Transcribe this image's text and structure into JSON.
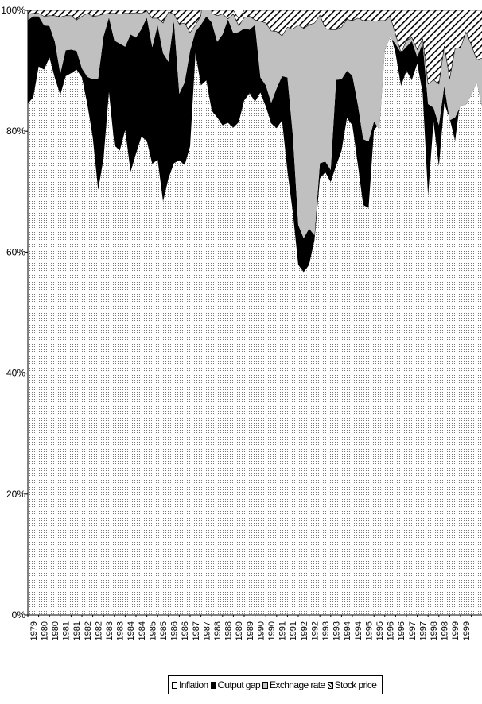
{
  "chart_data": {
    "type": "area",
    "stacked": true,
    "percent_stacked": true,
    "y_tick_labels": [
      "0%",
      "20%",
      "40%",
      "60%",
      "80%",
      "100%"
    ],
    "ylim": [
      0,
      100
    ],
    "x_tick_labels": [
      "1979",
      "1979",
      "1980",
      "1980",
      "1981",
      "1981",
      "1982",
      "1982",
      "1983",
      "1983",
      "1984",
      "1984",
      "1985",
      "1985",
      "1986",
      "1986",
      "1987",
      "1987",
      "1988",
      "1988",
      "1989",
      "1989",
      "1990",
      "1990",
      "1991",
      "1991",
      "1992",
      "1992",
      "1993",
      "1993",
      "1994",
      "1994",
      "1995",
      "1995",
      "1996",
      "1996",
      "1997",
      "1997",
      "1998",
      "1998",
      "1999",
      "1999"
    ],
    "x_tick_labels_rotation": -90,
    "n_points": 88,
    "legend_position": "bottom",
    "series": [
      {
        "name": "Inflation",
        "pattern": "dotted",
        "values": [
          84.6,
          85.6,
          90.7,
          90.2,
          92.2,
          88.8,
          86,
          89.1,
          89.6,
          90.2,
          88.9,
          84.5,
          79,
          70.3,
          75.5,
          86.5,
          77.7,
          76.8,
          80.2,
          73.3,
          76.3,
          79.1,
          78.4,
          74.6,
          75.3,
          68.4,
          72.2,
          74.7,
          75.2,
          74.4,
          77.5,
          92.9,
          87.6,
          88.4,
          83.4,
          82.3,
          81,
          81.4,
          80.6,
          81.5,
          85.1,
          86.3,
          84.9,
          86.4,
          84.1,
          81.3,
          80.5,
          81.8,
          73.4,
          66.5,
          57.9,
          56.7,
          57.9,
          62,
          72.2,
          73.2,
          71.6,
          74.3,
          76.8,
          82.2,
          81,
          74.6,
          67.8,
          67.3,
          80.2,
          81.3,
          93.9,
          96.3,
          92.8,
          87.5,
          90,
          88.5,
          91.2,
          86.3,
          69.3,
          81.6,
          74.2,
          84.6,
          82.1,
          78.4,
          85.4,
          85.1,
          90.3,
          91.2,
          84.7,
          80,
          87,
          83.4
        ]
      },
      {
        "name": "Output gap",
        "color": "#000000",
        "values": [
          13.8,
          13.4,
          8.3,
          7.3,
          5.2,
          6,
          3.5,
          4.3,
          3.9,
          3.1,
          1.5,
          4.5,
          9.6,
          18.4,
          20.2,
          12.3,
          17.3,
          17.7,
          13.8,
          22.7,
          19.2,
          17.8,
          20.4,
          19.3,
          22.2,
          24.5,
          19.3,
          23.6,
          11,
          13.7,
          15.8,
          3.6,
          10,
          10.6,
          14.6,
          12.5,
          15,
          17.1,
          15.6,
          14.9,
          11.9,
          10.5,
          12.7,
          2.5,
          3.5,
          3.4,
          6.6,
          7.3,
          15.5,
          12.8,
          6.6,
          5.6,
          6,
          0.8,
          2.5,
          1.8,
          2,
          14.2,
          11.8,
          7.8,
          8.2,
          9.9,
          10.9,
          11,
          1.4,
          -1,
          -0.5,
          -0.7,
          1.6,
          5.5,
          4,
          6.4,
          1.1,
          8.3,
          15.2,
          2.3,
          6.8,
          2.9,
          -0.3,
          3.9,
          -1.2,
          -0.7,
          -4.3,
          -3.1,
          -0.8,
          -1.7,
          -1.8,
          -1.8
        ]
      },
      {
        "name": "Exchnage rate",
        "color": "#c0c0c0",
        "values": [
          1,
          0.5,
          0.5,
          1.5,
          1.7,
          4.3,
          9.4,
          5.7,
          5.6,
          5.1,
          8.6,
          10.5,
          10.4,
          10.4,
          3.7,
          0.7,
          4.5,
          4.9,
          5.5,
          3.5,
          4.1,
          2.6,
          1.1,
          4.8,
          1.2,
          5,
          8.2,
          1.1,
          11.5,
          9.8,
          3,
          1.1,
          1.5,
          10.9,
          1.5,
          4.3,
          3.4,
          0.1,
          3.2,
          1,
          1.8,
          2.2,
          0.8,
          9.3,
          10.3,
          11.9,
          9.4,
          6.7,
          8.3,
          17.6,
          33.1,
          34.7,
          33.7,
          35.1,
          24.5,
          22,
          23.2,
          8.3,
          8.6,
          8.5,
          9.1,
          14.2,
          19.6,
          20,
          16.6,
          18,
          4.9,
          3.4,
          1.6,
          0,
          1,
          0.6,
          1.2,
          0.7,
          3.3,
          4.6,
          6.8,
          6.6,
          6.9,
          11.4,
          9.6,
          12,
          8.3,
          3.7,
          8.2,
          12.3,
          4.6,
          6.6
        ]
      },
      {
        "name": "Stock price",
        "pattern": "diagonal-hatch",
        "values": [
          0.6,
          0.5,
          0.5,
          1,
          0.9,
          0.9,
          1.1,
          0.9,
          0.9,
          1.6,
          1,
          0.5,
          1,
          0.9,
          0.6,
          0.5,
          0.5,
          0.6,
          0.5,
          0.5,
          0.4,
          0.5,
          0.1,
          1.3,
          1.3,
          2.1,
          0.3,
          0.6,
          2.3,
          2.1,
          3.7,
          2.4,
          0.9,
          0.1,
          0.5,
          0.9,
          0.6,
          1.4,
          0.6,
          1.2,
          1.2,
          1,
          1.6,
          1.8,
          2.1,
          3.4,
          3.5,
          4.2,
          2.8,
          3.1,
          2.4,
          3,
          2.4,
          2.1,
          0.8,
          3,
          3.2,
          3.2,
          2.8,
          1.5,
          1.7,
          1.3,
          1.7,
          1.7,
          1.8,
          1.7,
          1.7,
          1,
          4,
          7,
          5,
          4.5,
          6.5,
          4.7,
          12.2,
          11.5,
          12.2,
          5.9,
          11.3,
          6.3,
          6.2,
          4.6,
          5.7,
          8.2,
          7.9,
          9.4,
          10.2,
          11.8
        ]
      }
    ]
  }
}
